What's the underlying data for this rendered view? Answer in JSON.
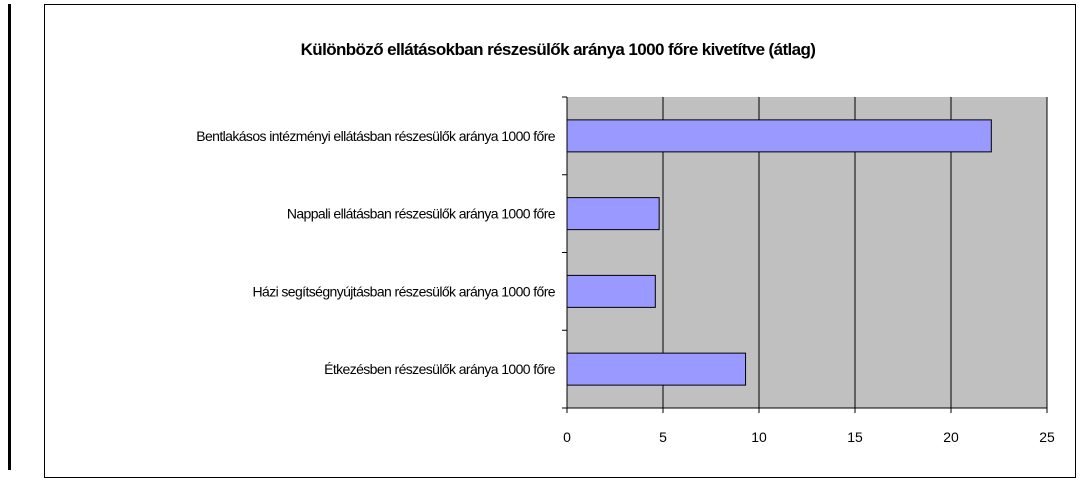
{
  "chart_data": {
    "type": "bar",
    "orientation": "horizontal",
    "title": "Különböző ellátásokban részesülők aránya 1000 főre kivetítve (átlag)",
    "categories": [
      "Bentlakásos intézményi ellátásban részesülők aránya 1000 főre",
      "Nappali ellátásban részesülők aránya 1000 főre",
      "Házi segítségnyújtásban részesülők aránya 1000 főre",
      "Étkezésben részesülők aránya 1000 főre"
    ],
    "values": [
      22.1,
      4.8,
      4.6,
      9.3
    ],
    "xlim": [
      0,
      25
    ],
    "xticks": [
      "0",
      "5",
      "10",
      "15",
      "20",
      "25"
    ],
    "xlabel": "",
    "ylabel": "",
    "grid": true,
    "legend": "none",
    "colors": {
      "bar_fill": "#9999ff",
      "plot_background": "#c0c0c0",
      "gridline": "#000000"
    }
  }
}
